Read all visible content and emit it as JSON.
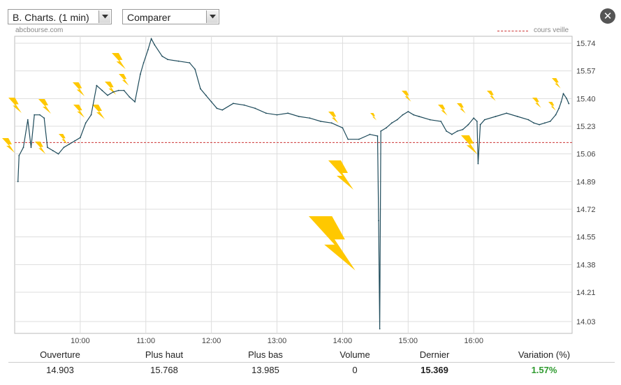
{
  "controls": {
    "chart_select_label": "B. Charts. (1 min)",
    "compare_select_label": "Comparer"
  },
  "chart_header": {
    "source": "abcbourse.com",
    "legend_label": "cours veille"
  },
  "colors": {
    "line": "#1d4a5a",
    "reference": "#cc3333",
    "grid": "#dddddd",
    "lightning": "#ffc800"
  },
  "chart_data": {
    "type": "line",
    "x_ticks": [
      "10:00",
      "11:00",
      "12:00",
      "13:00",
      "14:00",
      "15:00",
      "16:00"
    ],
    "y_ticks": [
      "15.74",
      "15.57",
      "15.40",
      "15.23",
      "15.06",
      "14.89",
      "14.72",
      "14.55",
      "14.38",
      "14.21",
      "14.03"
    ],
    "ylim": [
      13.985,
      15.768
    ],
    "x_range": [
      "09:00",
      "17:30"
    ],
    "reference_line": {
      "label": "cours veille",
      "value": 15.13
    },
    "series": [
      {
        "points": [
          [
            "09:03",
            14.89
          ],
          [
            "09:04",
            15.05
          ],
          [
            "09:08",
            15.1
          ],
          [
            "09:12",
            15.27
          ],
          [
            "09:15",
            15.1
          ],
          [
            "09:18",
            15.3
          ],
          [
            "09:23",
            15.3
          ],
          [
            "09:27",
            15.28
          ],
          [
            "09:30",
            15.1
          ],
          [
            "09:35",
            15.08
          ],
          [
            "09:40",
            15.06
          ],
          [
            "09:45",
            15.1
          ],
          [
            "09:50",
            15.12
          ],
          [
            "09:55",
            15.14
          ],
          [
            "10:00",
            15.16
          ],
          [
            "10:05",
            15.25
          ],
          [
            "10:10",
            15.3
          ],
          [
            "10:15",
            15.48
          ],
          [
            "10:20",
            15.45
          ],
          [
            "10:25",
            15.42
          ],
          [
            "10:30",
            15.44
          ],
          [
            "10:35",
            15.45
          ],
          [
            "10:40",
            15.45
          ],
          [
            "10:45",
            15.41
          ],
          [
            "10:50",
            15.38
          ],
          [
            "10:55",
            15.55
          ],
          [
            "10:58",
            15.62
          ],
          [
            "11:02",
            15.7
          ],
          [
            "11:05",
            15.768
          ],
          [
            "11:08",
            15.73
          ],
          [
            "11:15",
            15.66
          ],
          [
            "11:20",
            15.64
          ],
          [
            "11:30",
            15.63
          ],
          [
            "11:40",
            15.62
          ],
          [
            "11:45",
            15.58
          ],
          [
            "11:50",
            15.46
          ],
          [
            "11:55",
            15.42
          ],
          [
            "12:00",
            15.38
          ],
          [
            "12:05",
            15.34
          ],
          [
            "12:10",
            15.33
          ],
          [
            "12:20",
            15.37
          ],
          [
            "12:30",
            15.36
          ],
          [
            "12:40",
            15.34
          ],
          [
            "12:50",
            15.31
          ],
          [
            "13:00",
            15.3
          ],
          [
            "13:10",
            15.31
          ],
          [
            "13:20",
            15.29
          ],
          [
            "13:30",
            15.28
          ],
          [
            "13:40",
            15.26
          ],
          [
            "13:50",
            15.25
          ],
          [
            "14:00",
            15.22
          ],
          [
            "14:05",
            15.15
          ],
          [
            "14:15",
            15.15
          ],
          [
            "14:25",
            15.18
          ],
          [
            "14:32",
            15.17
          ],
          [
            "14:33",
            14.65
          ],
          [
            "14:34",
            13.985
          ],
          [
            "14:35",
            15.2
          ],
          [
            "14:40",
            15.22
          ],
          [
            "14:45",
            15.25
          ],
          [
            "14:50",
            15.27
          ],
          [
            "14:55",
            15.3
          ],
          [
            "15:00",
            15.32
          ],
          [
            "15:05",
            15.3
          ],
          [
            "15:10",
            15.29
          ],
          [
            "15:20",
            15.27
          ],
          [
            "15:30",
            15.26
          ],
          [
            "15:35",
            15.2
          ],
          [
            "15:40",
            15.18
          ],
          [
            "15:45",
            15.2
          ],
          [
            "15:50",
            15.21
          ],
          [
            "15:55",
            15.24
          ],
          [
            "16:00",
            15.28
          ],
          [
            "16:03",
            15.26
          ],
          [
            "16:04",
            15.0
          ],
          [
            "16:06",
            15.24
          ],
          [
            "16:10",
            15.27
          ],
          [
            "16:20",
            15.29
          ],
          [
            "16:30",
            15.31
          ],
          [
            "16:40",
            15.29
          ],
          [
            "16:50",
            15.27
          ],
          [
            "16:55",
            15.25
          ],
          [
            "17:00",
            15.24
          ],
          [
            "17:05",
            15.25
          ],
          [
            "17:10",
            15.26
          ],
          [
            "17:15",
            15.3
          ],
          [
            "17:18",
            15.34
          ],
          [
            "17:20",
            15.38
          ],
          [
            "17:22",
            15.43
          ],
          [
            "17:25",
            15.4
          ],
          [
            "17:27",
            15.369
          ]
        ]
      }
    ]
  },
  "stats": {
    "headers": [
      "Ouverture",
      "Plus haut",
      "Plus bas",
      "Volume",
      "Dernier",
      "Variation (%)"
    ],
    "values": [
      "14.903",
      "15.768",
      "13.985",
      "0",
      "15.369",
      "1.57%"
    ]
  }
}
